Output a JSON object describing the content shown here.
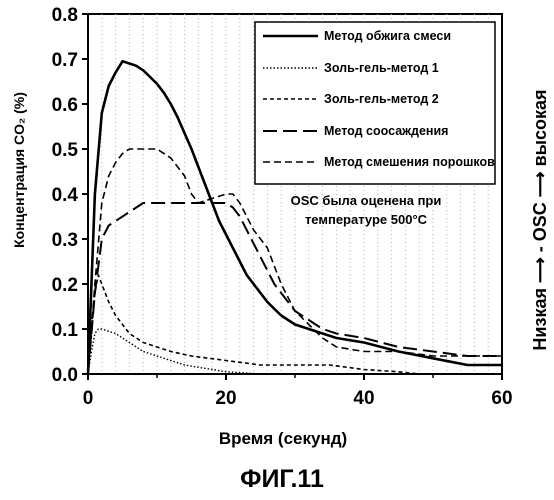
{
  "figure": {
    "caption": "ФИГ.11",
    "side_label": "Низкая ⟶ - OSC ⟶ высокая",
    "note_lines": [
      "OSC была оценена при",
      "температуре 500°C"
    ]
  },
  "chart_data": {
    "type": "line",
    "title": "",
    "xlabel": "Время (секунд)",
    "ylabel": "Концентрация CO₂ (%)",
    "xlim": [
      0,
      60
    ],
    "ylim": [
      0,
      0.8
    ],
    "xticks": [
      0,
      20,
      40,
      60
    ],
    "yticks": [
      0.0,
      0.1,
      0.2,
      0.3,
      0.4,
      0.5,
      0.6,
      0.7,
      0.8
    ],
    "xtick_labels": [
      "0",
      "20",
      "40",
      "60"
    ],
    "ytick_labels": [
      "0.0",
      "0.1",
      "0.2",
      "0.3",
      "0.4",
      "0.5",
      "0.6",
      "0.7",
      "0.8"
    ],
    "grid": "vertical",
    "legend_position": "top-right",
    "series": [
      {
        "name": "Метод обжига смеси",
        "style": "solid-thick",
        "color": "#000000",
        "x": [
          0,
          1,
          2,
          3,
          4,
          5,
          6,
          7,
          8,
          9,
          10,
          11,
          12,
          13,
          14,
          15,
          16,
          17,
          18,
          19,
          20,
          21,
          22,
          23,
          24,
          25,
          26,
          27,
          28,
          29,
          30,
          32,
          34,
          36,
          40,
          45,
          50,
          55,
          60
        ],
        "y": [
          0.0,
          0.4,
          0.58,
          0.64,
          0.67,
          0.695,
          0.69,
          0.685,
          0.675,
          0.66,
          0.645,
          0.625,
          0.6,
          0.57,
          0.535,
          0.5,
          0.46,
          0.42,
          0.38,
          0.34,
          0.31,
          0.28,
          0.25,
          0.22,
          0.2,
          0.18,
          0.16,
          0.145,
          0.13,
          0.12,
          0.11,
          0.1,
          0.09,
          0.08,
          0.07,
          0.05,
          0.035,
          0.02,
          0.02
        ]
      },
      {
        "name": "Золь-гель-метод 1",
        "style": "dotted",
        "color": "#000000",
        "x": [
          0,
          0.5,
          1,
          1.5,
          2,
          3,
          4,
          5,
          6,
          8,
          10,
          12,
          14,
          16,
          18,
          20,
          22,
          25,
          30,
          60
        ],
        "y": [
          0.0,
          0.05,
          0.09,
          0.1,
          0.1,
          0.095,
          0.09,
          0.08,
          0.07,
          0.05,
          0.04,
          0.03,
          0.02,
          0.015,
          0.01,
          0.005,
          0.003,
          0.0,
          0.0,
          0.0
        ]
      },
      {
        "name": "Золь-гель-метод 2",
        "style": "short-dash",
        "color": "#000000",
        "x": [
          0,
          1,
          1.5,
          2,
          3,
          4,
          5,
          6,
          8,
          10,
          12,
          15,
          20,
          25,
          30,
          35,
          40,
          45,
          48,
          50,
          55,
          60
        ],
        "y": [
          0.0,
          0.18,
          0.22,
          0.2,
          0.16,
          0.13,
          0.11,
          0.09,
          0.07,
          0.06,
          0.05,
          0.04,
          0.03,
          0.02,
          0.02,
          0.02,
          0.01,
          0.005,
          0.0,
          0.0,
          0.0,
          0.0
        ]
      },
      {
        "name": "Метод соосаждения",
        "style": "long-dash",
        "color": "#000000",
        "x": [
          0,
          1,
          2,
          3,
          4,
          5,
          6,
          7,
          8,
          9,
          10,
          11,
          12,
          13,
          14,
          15,
          16,
          17,
          18,
          19,
          20,
          21,
          22,
          23,
          24,
          25,
          26,
          27,
          28,
          29,
          30,
          32,
          34,
          36,
          40,
          45,
          50,
          55,
          60
        ],
        "y": [
          0.0,
          0.18,
          0.3,
          0.33,
          0.34,
          0.35,
          0.36,
          0.37,
          0.38,
          0.38,
          0.38,
          0.38,
          0.38,
          0.38,
          0.38,
          0.38,
          0.38,
          0.38,
          0.38,
          0.38,
          0.38,
          0.37,
          0.35,
          0.32,
          0.29,
          0.26,
          0.23,
          0.2,
          0.18,
          0.16,
          0.14,
          0.12,
          0.1,
          0.09,
          0.08,
          0.06,
          0.05,
          0.04,
          0.04
        ]
      },
      {
        "name": "Метод смешения порошков",
        "style": "medium-dash",
        "color": "#000000",
        "x": [
          0,
          1,
          2,
          3,
          4,
          5,
          6,
          8,
          10,
          12,
          14,
          15,
          16,
          18,
          20,
          21,
          22,
          23,
          24,
          25,
          26,
          27,
          28,
          29,
          30,
          32,
          34,
          36,
          40,
          45,
          50,
          55,
          60
        ],
        "y": [
          0.0,
          0.2,
          0.38,
          0.44,
          0.47,
          0.49,
          0.5,
          0.5,
          0.5,
          0.48,
          0.44,
          0.4,
          0.38,
          0.39,
          0.4,
          0.4,
          0.38,
          0.35,
          0.32,
          0.3,
          0.28,
          0.24,
          0.2,
          0.17,
          0.14,
          0.11,
          0.08,
          0.06,
          0.05,
          0.05,
          0.04,
          0.04,
          0.04
        ]
      }
    ]
  }
}
